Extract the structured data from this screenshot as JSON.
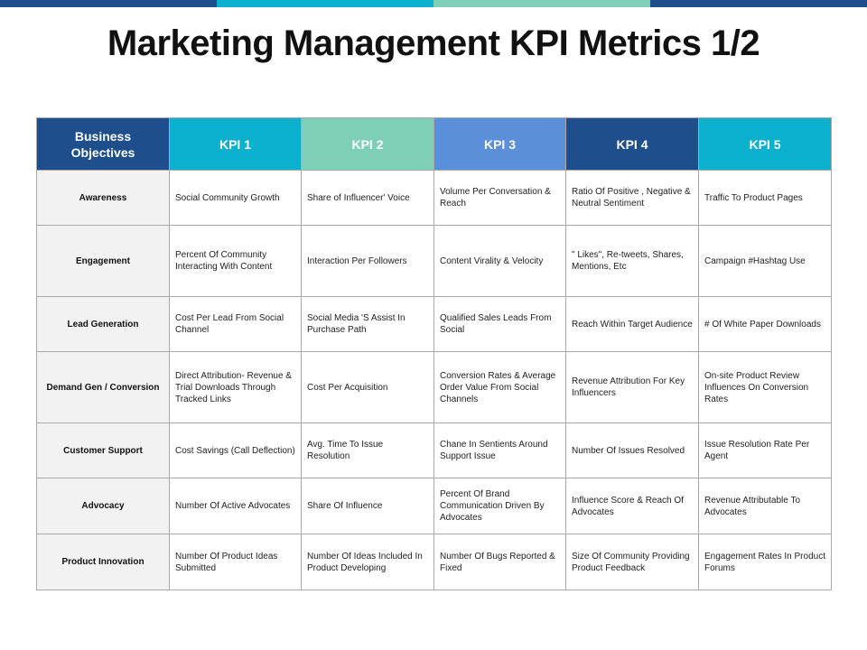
{
  "colors": {
    "top_bar": [
      "#1f4e8c",
      "#0bb0cc",
      "#7ecfb7",
      "#1f4e8c"
    ],
    "headers": [
      "#1f4e8c",
      "#0bb0cc",
      "#7ecfb7",
      "#5b8fd9",
      "#1f4e8c",
      "#0bb0cc"
    ]
  },
  "title": "Marketing Management KPI Metrics 1/2",
  "table": {
    "headers": [
      "Business Objectives",
      "KPI 1",
      "KPI 2",
      "KPI 3",
      "KPI 4",
      "KPI 5"
    ],
    "rows": [
      {
        "objective": "Awareness",
        "cells": [
          "Social Community Growth",
          "Share of Influencer' Voice",
          "Volume Per Conversation & Reach",
          "Ratio Of Positive , Negative & Neutral Sentiment",
          "Traffic To Product Pages"
        ]
      },
      {
        "objective": "Engagement",
        "cells": [
          "Percent Of Community Interacting With Content",
          "Interaction Per Followers",
          "Content Virality & Velocity",
          "\" Likes\", Re-tweets, Shares, Mentions, Etc",
          "Campaign #Hashtag Use"
        ]
      },
      {
        "objective": "Lead Generation",
        "cells": [
          "Cost Per Lead From Social Channel",
          "Social Media 'S Assist In Purchase Path",
          "Qualified Sales Leads From Social",
          "Reach Within Target Audience",
          "# Of White Paper Downloads"
        ]
      },
      {
        "objective": "Demand Gen / Conversion",
        "cells": [
          "Direct Attribution- Revenue & Trial Downloads Through Tracked Links",
          "Cost Per Acquisition",
          "Conversion Rates & Average Order Value From Social Channels",
          "Revenue Attribution For Key Influencers",
          "On-site Product Review Influences On Conversion Rates"
        ]
      },
      {
        "objective": "Customer Support",
        "cells": [
          "Cost Savings (Call Deflection)",
          "Avg. Time To Issue Resolution",
          "Chane In Sentients Around Support Issue",
          "Number Of Issues Resolved",
          "Issue Resolution Rate Per Agent"
        ]
      },
      {
        "objective": "Advocacy",
        "cells": [
          "Number Of Active Advocates",
          "Share Of Influence",
          "Percent Of Brand Communication Driven By Advocates",
          "Influence Score & Reach Of Advocates",
          "Revenue Attributable To Advocates"
        ]
      },
      {
        "objective": "Product Innovation",
        "cells": [
          "Number Of Product Ideas Submitted",
          "Number Of Ideas Included In Product Developing",
          "Number Of Bugs Reported & Fixed",
          "Size Of Community Providing Product Feedback",
          "Engagement Rates In Product Forums"
        ]
      }
    ]
  }
}
